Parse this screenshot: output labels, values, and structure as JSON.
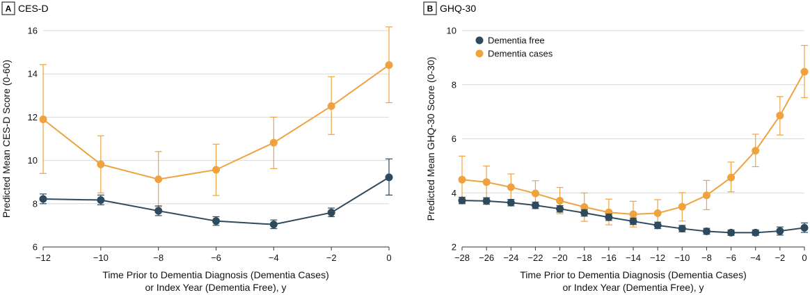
{
  "chart_data": [
    {
      "type": "line",
      "panel_label": "A",
      "title": "CES-D",
      "xlabel": [
        "Time Prior to Dementia Diagnosis (Dementia Cases)",
        "or Index Year (Dementia Free), y"
      ],
      "ylabel": "Predicted Mean CES-D Score (0-60)",
      "xlim": [
        -12,
        0
      ],
      "ylim": [
        6,
        16
      ],
      "x_ticks": [
        -12,
        -10,
        -8,
        -6,
        -4,
        -2,
        0
      ],
      "y_ticks": [
        6,
        8,
        10,
        12,
        14,
        16
      ],
      "x_tick_labels": [
        "−12",
        "−10",
        "−8",
        "−6",
        "−4",
        "−2",
        "0"
      ],
      "y_tick_labels": [
        "6",
        "8",
        "10",
        "12",
        "14",
        "16"
      ],
      "grid": true,
      "legend": false,
      "series": [
        {
          "name": "Dementia free",
          "color": "#2e4a5c",
          "x": [
            -12,
            -10,
            -8,
            -6,
            -4,
            -2,
            0
          ],
          "y": [
            8.22,
            8.17,
            7.67,
            7.2,
            7.04,
            7.59,
            9.22
          ],
          "lower": [
            8.0,
            7.95,
            7.45,
            7.0,
            6.85,
            7.4,
            8.4
          ],
          "upper": [
            8.45,
            8.4,
            7.9,
            7.4,
            7.25,
            7.8,
            10.07
          ]
        },
        {
          "name": "Dementia cases",
          "color": "#f0a23e",
          "x": [
            -12,
            -10,
            -8,
            -6,
            -4,
            -2,
            0
          ],
          "y": [
            11.9,
            9.82,
            9.13,
            9.57,
            10.82,
            12.51,
            14.41
          ],
          "lower": [
            9.4,
            8.5,
            7.85,
            8.38,
            9.62,
            11.2,
            12.67
          ],
          "upper": [
            14.43,
            11.14,
            10.41,
            10.75,
            12.0,
            13.87,
            16.17
          ]
        }
      ]
    },
    {
      "type": "line",
      "panel_label": "B",
      "title": "GHQ-30",
      "xlabel": [
        "Time Prior to Dementia Diagnosis (Dementia Cases)",
        "or Index Year (Dementia Free), y"
      ],
      "ylabel": "Predicted Mean GHQ-30 Score (0-30)",
      "xlim": [
        -28,
        0
      ],
      "ylim": [
        2,
        10
      ],
      "x_ticks": [
        -28,
        -26,
        -24,
        -22,
        -20,
        -18,
        -16,
        -14,
        -12,
        -10,
        -8,
        -6,
        -4,
        -2,
        0
      ],
      "y_ticks": [
        2,
        4,
        6,
        8,
        10
      ],
      "x_tick_labels": [
        "−28",
        "−26",
        "−24",
        "−22",
        "−20",
        "−18",
        "−16",
        "−14",
        "−12",
        "−10",
        "−8",
        "−6",
        "−4",
        "−2",
        "0"
      ],
      "y_tick_labels": [
        "2",
        "4",
        "6",
        "8",
        "10"
      ],
      "grid": true,
      "legend": "top-left",
      "series": [
        {
          "name": "Dementia free",
          "color": "#2e4a5c",
          "x": [
            -28,
            -26,
            -24,
            -22,
            -20,
            -18,
            -16,
            -14,
            -12,
            -10,
            -8,
            -6,
            -4,
            -2,
            0
          ],
          "y": [
            3.72,
            3.7,
            3.64,
            3.54,
            3.41,
            3.26,
            3.1,
            2.95,
            2.8,
            2.68,
            2.58,
            2.53,
            2.53,
            2.59,
            2.71
          ],
          "lower": [
            3.6,
            3.58,
            3.52,
            3.42,
            3.29,
            3.14,
            2.98,
            2.83,
            2.68,
            2.56,
            2.47,
            2.43,
            2.43,
            2.44,
            2.54
          ],
          "upper": [
            3.84,
            3.82,
            3.76,
            3.66,
            3.53,
            3.38,
            3.22,
            3.07,
            2.92,
            2.8,
            2.69,
            2.63,
            2.63,
            2.74,
            2.89
          ]
        },
        {
          "name": "Dementia cases",
          "color": "#f0a23e",
          "x": [
            -28,
            -26,
            -24,
            -22,
            -20,
            -18,
            -16,
            -14,
            -12,
            -10,
            -8,
            -6,
            -4,
            -2,
            0
          ],
          "y": [
            4.49,
            4.4,
            4.21,
            3.98,
            3.71,
            3.48,
            3.28,
            3.21,
            3.25,
            3.49,
            3.91,
            4.57,
            5.56,
            6.86,
            8.48
          ],
          "lower": [
            3.62,
            3.82,
            3.75,
            3.52,
            3.23,
            2.95,
            2.82,
            2.74,
            2.76,
            2.96,
            3.38,
            4.04,
            4.97,
            6.14,
            7.52
          ],
          "upper": [
            5.36,
            4.99,
            4.7,
            4.45,
            4.2,
            4.0,
            3.77,
            3.69,
            3.75,
            4.01,
            4.46,
            5.14,
            6.17,
            7.56,
            9.45
          ]
        }
      ]
    }
  ]
}
